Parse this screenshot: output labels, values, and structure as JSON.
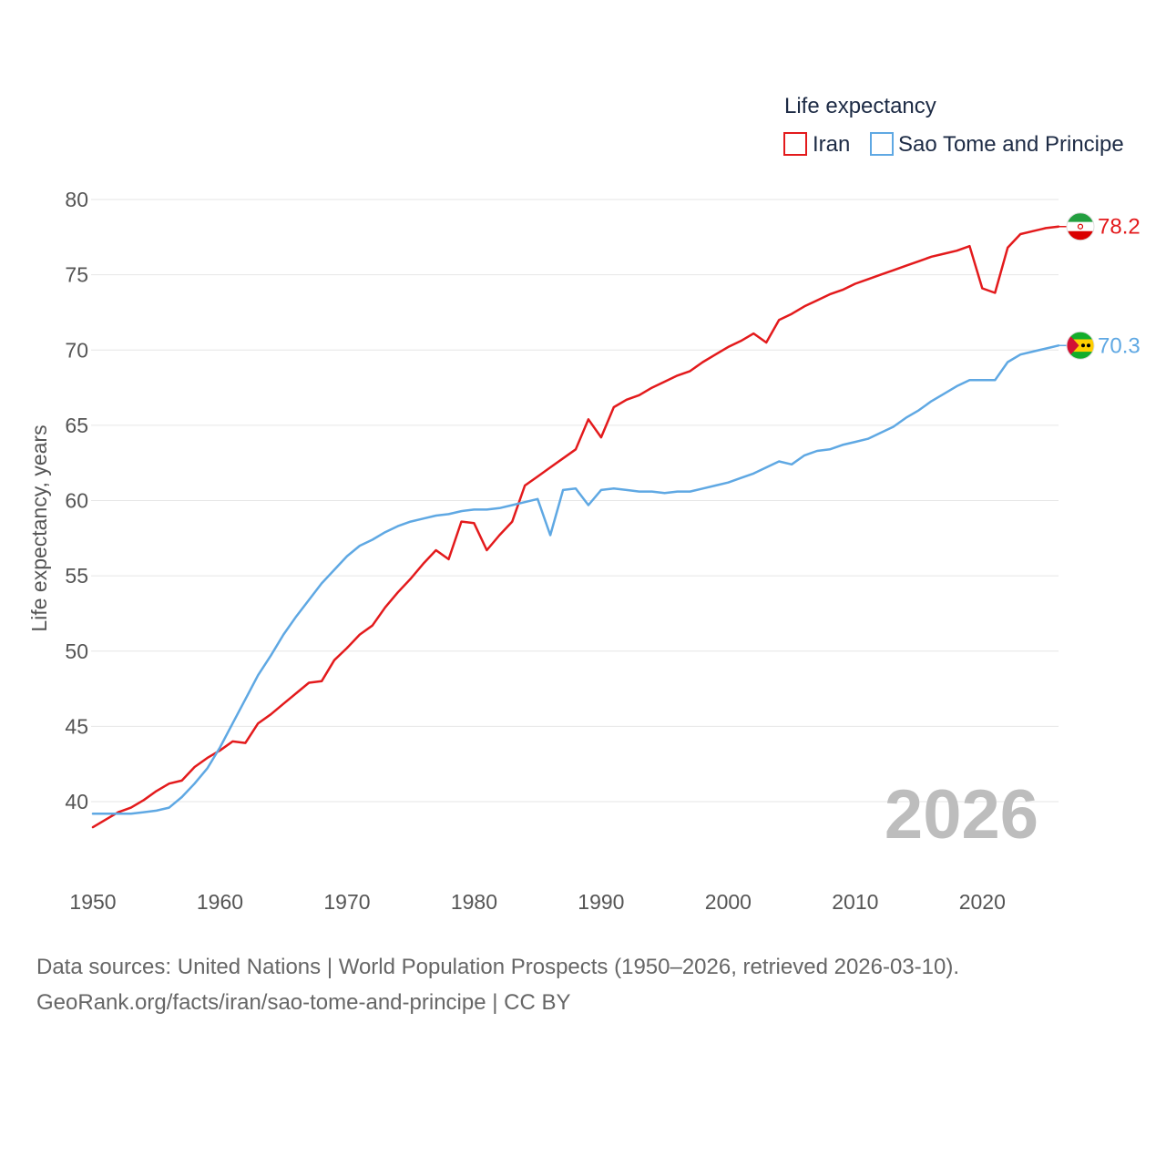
{
  "chart_data": {
    "type": "line",
    "title": "Life expectancy",
    "xlabel": "",
    "ylabel": "Life expectancy, years",
    "xlim": [
      1950,
      2026
    ],
    "ylim": [
      35,
      80
    ],
    "y_ticks": [
      40,
      45,
      50,
      55,
      60,
      65,
      70,
      75,
      80
    ],
    "x_ticks": [
      1950,
      1960,
      1970,
      1980,
      1990,
      2000,
      2010,
      2020
    ],
    "current_year_label": "2026",
    "legend_position": "top-right",
    "series": [
      {
        "name": "Iran",
        "color": "#e31a1c",
        "end_label": "78.2",
        "flag_icon": "iran-flag-icon",
        "points": [
          [
            1950,
            38.3
          ],
          [
            1951,
            38.8
          ],
          [
            1952,
            39.3
          ],
          [
            1953,
            39.6
          ],
          [
            1954,
            40.1
          ],
          [
            1955,
            40.7
          ],
          [
            1956,
            41.2
          ],
          [
            1957,
            41.4
          ],
          [
            1958,
            42.3
          ],
          [
            1959,
            42.9
          ],
          [
            1960,
            43.4
          ],
          [
            1961,
            44.0
          ],
          [
            1962,
            43.9
          ],
          [
            1963,
            45.2
          ],
          [
            1964,
            45.8
          ],
          [
            1965,
            46.5
          ],
          [
            1966,
            47.2
          ],
          [
            1967,
            47.9
          ],
          [
            1968,
            48.0
          ],
          [
            1969,
            49.4
          ],
          [
            1970,
            50.2
          ],
          [
            1971,
            51.1
          ],
          [
            1972,
            51.7
          ],
          [
            1973,
            52.9
          ],
          [
            1974,
            53.9
          ],
          [
            1975,
            54.8
          ],
          [
            1976,
            55.8
          ],
          [
            1977,
            56.7
          ],
          [
            1978,
            56.1
          ],
          [
            1979,
            58.6
          ],
          [
            1980,
            58.5
          ],
          [
            1981,
            56.7
          ],
          [
            1982,
            57.7
          ],
          [
            1983,
            58.6
          ],
          [
            1984,
            61.0
          ],
          [
            1985,
            61.6
          ],
          [
            1986,
            62.2
          ],
          [
            1987,
            62.8
          ],
          [
            1988,
            63.4
          ],
          [
            1989,
            65.4
          ],
          [
            1990,
            64.2
          ],
          [
            1991,
            66.2
          ],
          [
            1992,
            66.7
          ],
          [
            1993,
            67.0
          ],
          [
            1994,
            67.5
          ],
          [
            1995,
            67.9
          ],
          [
            1996,
            68.3
          ],
          [
            1997,
            68.6
          ],
          [
            1998,
            69.2
          ],
          [
            1999,
            69.7
          ],
          [
            2000,
            70.2
          ],
          [
            2001,
            70.6
          ],
          [
            2002,
            71.1
          ],
          [
            2003,
            70.5
          ],
          [
            2004,
            72.0
          ],
          [
            2005,
            72.4
          ],
          [
            2006,
            72.9
          ],
          [
            2007,
            73.3
          ],
          [
            2008,
            73.7
          ],
          [
            2009,
            74.0
          ],
          [
            2010,
            74.4
          ],
          [
            2011,
            74.7
          ],
          [
            2012,
            75.0
          ],
          [
            2013,
            75.3
          ],
          [
            2014,
            75.6
          ],
          [
            2015,
            75.9
          ],
          [
            2016,
            76.2
          ],
          [
            2017,
            76.4
          ],
          [
            2018,
            76.6
          ],
          [
            2019,
            76.9
          ],
          [
            2020,
            74.1
          ],
          [
            2021,
            73.8
          ],
          [
            2022,
            76.8
          ],
          [
            2023,
            77.7
          ],
          [
            2024,
            77.9
          ],
          [
            2025,
            78.1
          ],
          [
            2026,
            78.2
          ]
        ]
      },
      {
        "name": "Sao Tome and Principe",
        "color": "#5fa8e3",
        "end_label": "70.3",
        "flag_icon": "sao-tome-and-principe-flag-icon",
        "points": [
          [
            1950,
            39.2
          ],
          [
            1951,
            39.2
          ],
          [
            1952,
            39.2
          ],
          [
            1953,
            39.2
          ],
          [
            1954,
            39.3
          ],
          [
            1955,
            39.4
          ],
          [
            1956,
            39.6
          ],
          [
            1957,
            40.3
          ],
          [
            1958,
            41.2
          ],
          [
            1959,
            42.2
          ],
          [
            1960,
            43.6
          ],
          [
            1961,
            45.2
          ],
          [
            1962,
            46.8
          ],
          [
            1963,
            48.4
          ],
          [
            1964,
            49.7
          ],
          [
            1965,
            51.1
          ],
          [
            1966,
            52.3
          ],
          [
            1967,
            53.4
          ],
          [
            1968,
            54.5
          ],
          [
            1969,
            55.4
          ],
          [
            1970,
            56.3
          ],
          [
            1971,
            57.0
          ],
          [
            1972,
            57.4
          ],
          [
            1973,
            57.9
          ],
          [
            1974,
            58.3
          ],
          [
            1975,
            58.6
          ],
          [
            1976,
            58.8
          ],
          [
            1977,
            59.0
          ],
          [
            1978,
            59.1
          ],
          [
            1979,
            59.3
          ],
          [
            1980,
            59.4
          ],
          [
            1981,
            59.4
          ],
          [
            1982,
            59.5
          ],
          [
            1983,
            59.7
          ],
          [
            1984,
            59.9
          ],
          [
            1985,
            60.1
          ],
          [
            1986,
            57.7
          ],
          [
            1987,
            60.7
          ],
          [
            1988,
            60.8
          ],
          [
            1989,
            59.7
          ],
          [
            1990,
            60.7
          ],
          [
            1991,
            60.8
          ],
          [
            1992,
            60.7
          ],
          [
            1993,
            60.6
          ],
          [
            1994,
            60.6
          ],
          [
            1995,
            60.5
          ],
          [
            1996,
            60.6
          ],
          [
            1997,
            60.6
          ],
          [
            1998,
            60.8
          ],
          [
            1999,
            61.0
          ],
          [
            2000,
            61.2
          ],
          [
            2001,
            61.5
          ],
          [
            2002,
            61.8
          ],
          [
            2003,
            62.2
          ],
          [
            2004,
            62.6
          ],
          [
            2005,
            62.4
          ],
          [
            2006,
            63.0
          ],
          [
            2007,
            63.3
          ],
          [
            2008,
            63.4
          ],
          [
            2009,
            63.7
          ],
          [
            2010,
            63.9
          ],
          [
            2011,
            64.1
          ],
          [
            2012,
            64.5
          ],
          [
            2013,
            64.9
          ],
          [
            2014,
            65.5
          ],
          [
            2015,
            66.0
          ],
          [
            2016,
            66.6
          ],
          [
            2017,
            67.1
          ],
          [
            2018,
            67.6
          ],
          [
            2019,
            68.0
          ],
          [
            2020,
            68.0
          ],
          [
            2021,
            68.0
          ],
          [
            2022,
            69.2
          ],
          [
            2023,
            69.7
          ],
          [
            2024,
            69.9
          ],
          [
            2025,
            70.1
          ],
          [
            2026,
            70.3
          ]
        ]
      }
    ]
  },
  "footer": {
    "line1": "Data sources: United Nations | World Population Prospects (1950–2026, retrieved 2026-03-10).",
    "line2": "GeoRank.org/facts/iran/sao-tome-and-principe | CC BY"
  }
}
